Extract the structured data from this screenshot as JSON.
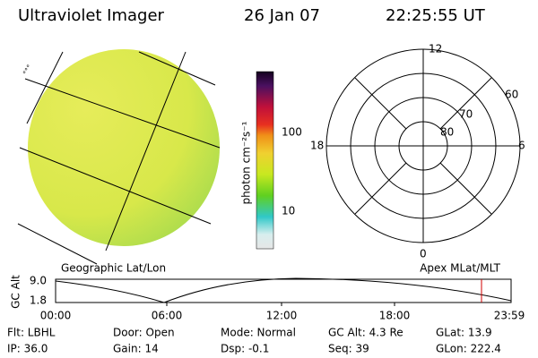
{
  "header": {
    "title": "Ultraviolet Imager",
    "date": "26 Jan 07",
    "time": "22:25:55 UT"
  },
  "colorbar": {
    "label": "photon cm⁻²s⁻¹",
    "ticks": [
      "100",
      "10"
    ]
  },
  "polar": {
    "mlt_labels": [
      "12",
      "18",
      "6",
      "0"
    ],
    "lat_labels": [
      "60",
      "70",
      "80"
    ]
  },
  "altitude_plot": {
    "left_title": "Geographic Lat/Lon",
    "right_title": "Apex MLat/MLT",
    "y_label": "GC Alt",
    "yticks": [
      "9.0",
      "1.8"
    ],
    "xticks": [
      "00:00",
      "06:00",
      "12:00",
      "18:00",
      "23:59"
    ]
  },
  "footer": {
    "rows": [
      [
        "Flt: LBHL",
        "Door: Open",
        "Mode: Normal",
        "GC Alt: 4.3 Re",
        "GLat: 13.9"
      ],
      [
        "IP: 36.0",
        "Gain: 14",
        "Dsp:   -0.1",
        "Seq: 39",
        "GLon: 222.4"
      ]
    ]
  }
}
